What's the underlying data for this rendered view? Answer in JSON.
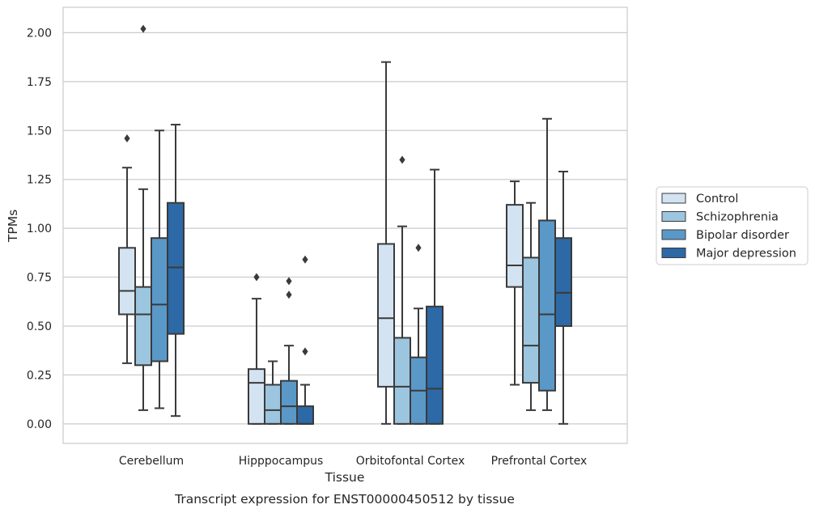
{
  "chart_data": {
    "type": "box",
    "caption": "Transcript expression for ENST00000450512 by tissue",
    "xlabel": "Tissue",
    "ylabel": "TPMs",
    "ylim": [
      -0.1,
      2.13
    ],
    "yticks": [
      0.0,
      0.25,
      0.5,
      0.75,
      1.0,
      1.25,
      1.5,
      1.75,
      2.0
    ],
    "ytick_labels": [
      "0.00",
      "0.25",
      "0.50",
      "0.75",
      "1.00",
      "1.25",
      "1.50",
      "1.75",
      "2.00"
    ],
    "grid": "horizontal",
    "legend_position": "right",
    "categories": [
      "Cerebellum",
      "Hipppocampus",
      "Orbitofontal Cortex",
      "Prefrontal Cortex"
    ],
    "series": [
      {
        "name": "Control",
        "color": "#d3e3f2",
        "boxes": [
          {
            "whisker_low": 0.31,
            "q1": 0.56,
            "median": 0.68,
            "q3": 0.9,
            "whisker_high": 1.31,
            "outliers": [
              1.46
            ]
          },
          {
            "whisker_low": 0.0,
            "q1": 0.0,
            "median": 0.21,
            "q3": 0.28,
            "whisker_high": 0.64,
            "outliers": [
              0.75
            ]
          },
          {
            "whisker_low": 0.0,
            "q1": 0.19,
            "median": 0.54,
            "q3": 0.92,
            "whisker_high": 1.85,
            "outliers": []
          },
          {
            "whisker_low": 0.2,
            "q1": 0.7,
            "median": 0.81,
            "q3": 1.12,
            "whisker_high": 1.24,
            "outliers": []
          }
        ]
      },
      {
        "name": "Schizophrenia",
        "color": "#9cc5df",
        "boxes": [
          {
            "whisker_low": 0.07,
            "q1": 0.3,
            "median": 0.56,
            "q3": 0.7,
            "whisker_high": 1.2,
            "outliers": [
              2.02
            ]
          },
          {
            "whisker_low": 0.0,
            "q1": 0.0,
            "median": 0.07,
            "q3": 0.2,
            "whisker_high": 0.32,
            "outliers": []
          },
          {
            "whisker_low": 0.0,
            "q1": 0.0,
            "median": 0.19,
            "q3": 0.44,
            "whisker_high": 1.01,
            "outliers": [
              1.35
            ]
          },
          {
            "whisker_low": 0.07,
            "q1": 0.21,
            "median": 0.4,
            "q3": 0.85,
            "whisker_high": 1.13,
            "outliers": []
          }
        ]
      },
      {
        "name": "Bipolar disorder",
        "color": "#5a98c8",
        "boxes": [
          {
            "whisker_low": 0.08,
            "q1": 0.32,
            "median": 0.61,
            "q3": 0.95,
            "whisker_high": 1.5,
            "outliers": []
          },
          {
            "whisker_low": 0.0,
            "q1": 0.0,
            "median": 0.09,
            "q3": 0.22,
            "whisker_high": 0.4,
            "outliers": [
              0.66,
              0.73
            ]
          },
          {
            "whisker_low": 0.0,
            "q1": 0.0,
            "median": 0.17,
            "q3": 0.34,
            "whisker_high": 0.59,
            "outliers": [
              0.9
            ]
          },
          {
            "whisker_low": 0.07,
            "q1": 0.17,
            "median": 0.56,
            "q3": 1.04,
            "whisker_high": 1.56,
            "outliers": []
          }
        ]
      },
      {
        "name": "Major depression",
        "color": "#2c69a6",
        "boxes": [
          {
            "whisker_low": 0.04,
            "q1": 0.46,
            "median": 0.8,
            "q3": 1.13,
            "whisker_high": 1.53,
            "outliers": []
          },
          {
            "whisker_low": 0.0,
            "q1": 0.0,
            "median": 0.0,
            "q3": 0.09,
            "whisker_high": 0.2,
            "outliers": [
              0.37,
              0.84
            ]
          },
          {
            "whisker_low": 0.0,
            "q1": 0.0,
            "median": 0.18,
            "q3": 0.6,
            "whisker_high": 1.3,
            "outliers": []
          },
          {
            "whisker_low": 0.0,
            "q1": 0.5,
            "median": 0.67,
            "q3": 0.95,
            "whisker_high": 1.29,
            "outliers": []
          }
        ]
      }
    ]
  }
}
